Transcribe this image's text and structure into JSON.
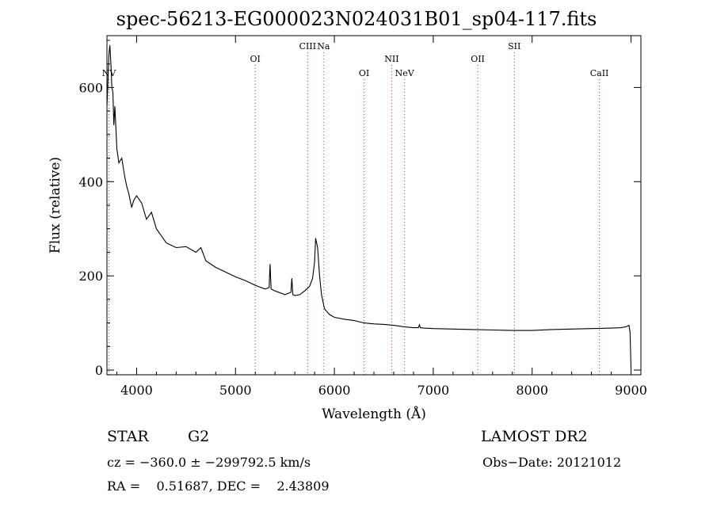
{
  "chart_data": {
    "type": "line",
    "title": "spec-56213-EG000023N024031B01_sp04-117.fits",
    "xlabel": "Wavelength (Å)",
    "ylabel": "Flux (relative)",
    "xlim": [
      3700,
      9100
    ],
    "ylim": [
      -10,
      710
    ],
    "xticks": [
      4000,
      5000,
      6000,
      7000,
      8000,
      9000
    ],
    "yticks": [
      0,
      200,
      400,
      600
    ],
    "grid": false,
    "line_color": "#000000",
    "marker_color": "#cc3333",
    "series": [
      {
        "x": [
          3700,
          3710,
          3720,
          3730,
          3740,
          3750,
          3760,
          3770,
          3780,
          3800,
          3820,
          3850,
          3880,
          3900,
          3920,
          3950,
          3970,
          4000,
          4050,
          4100,
          4150,
          4200,
          4250,
          4300,
          4350,
          4400,
          4500,
          4600,
          4650,
          4700,
          4800,
          4900,
          5000,
          5100,
          5200,
          5300,
          5340,
          5350,
          5360,
          5400,
          5500,
          5560,
          5570,
          5580,
          5600,
          5650,
          5700,
          5750,
          5780,
          5800,
          5810,
          5830,
          5850,
          5870,
          5900,
          5950,
          6000,
          6100,
          6200,
          6300,
          6400,
          6500,
          6600,
          6700,
          6800,
          6850,
          6860,
          6870,
          6900,
          7000,
          7200,
          7400,
          7600,
          7800,
          8000,
          8200,
          8400,
          8600,
          8800,
          8900,
          8950,
          8980,
          8990,
          9000
        ],
        "y": [
          560,
          610,
          670,
          690,
          650,
          600,
          590,
          520,
          560,
          470,
          440,
          450,
          410,
          390,
          375,
          345,
          360,
          370,
          355,
          320,
          335,
          300,
          285,
          270,
          265,
          260,
          262,
          250,
          260,
          232,
          218,
          208,
          198,
          190,
          180,
          172,
          175,
          225,
          172,
          168,
          160,
          165,
          195,
          160,
          158,
          160,
          168,
          178,
          195,
          230,
          280,
          260,
          200,
          160,
          130,
          118,
          112,
          108,
          105,
          100,
          98,
          97,
          95,
          92,
          90,
          90,
          96,
          90,
          89,
          88,
          87,
          86,
          85,
          84,
          84,
          86,
          87,
          88,
          89,
          90,
          92,
          95,
          80,
          5
        ]
      }
    ],
    "lines": [
      {
        "label": "NV",
        "x": 3720,
        "row": 2
      },
      {
        "label": "OI",
        "x": 5200,
        "row": 1
      },
      {
        "label": "CIII",
        "x": 5730,
        "row": 0
      },
      {
        "label": "Na",
        "x": 5890,
        "row": 0
      },
      {
        "label": "OI",
        "x": 6300,
        "row": 2
      },
      {
        "label": "NII",
        "x": 6580,
        "row": 1
      },
      {
        "label": "NeV",
        "x": 6710,
        "row": 2
      },
      {
        "label": "OII",
        "x": 7450,
        "row": 1
      },
      {
        "label": "SII",
        "x": 7820,
        "row": 0
      },
      {
        "label": "CaII",
        "x": 8680,
        "row": 2
      }
    ]
  },
  "info": {
    "obj_class": "STAR",
    "obj_subclass": "G2",
    "survey": "LAMOST DR2",
    "cz": "cz = −360.0 ± −299792.5 km/s",
    "obs_date": "Obs−Date: 20121012",
    "radec": "RA =    0.51687, DEC =    2.43809"
  }
}
